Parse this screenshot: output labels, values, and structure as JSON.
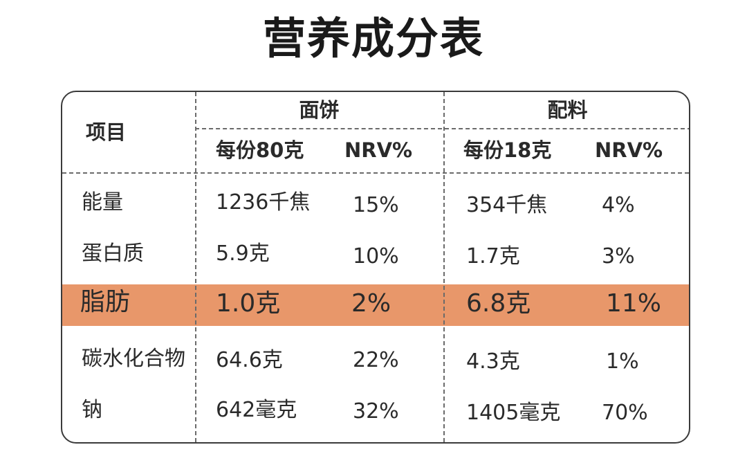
{
  "title": "营养成分表",
  "table": {
    "item_header": "项目",
    "groups": [
      {
        "name": "面饼",
        "serving_header": "每份80克",
        "nrv_header": "NRV%"
      },
      {
        "name": "配料",
        "serving_header": "每份18克",
        "nrv_header": "NRV%"
      }
    ],
    "rows": [
      {
        "item": "能量",
        "noodle_amount": "1236千焦",
        "noodle_nrv": "15%",
        "season_amount": "354千焦",
        "season_nrv": "4%",
        "highlighted": false
      },
      {
        "item": "蛋白质",
        "noodle_amount": "5.9克",
        "noodle_nrv": "10%",
        "season_amount": "1.7克",
        "season_nrv": "3%",
        "highlighted": false
      },
      {
        "item": "脂肪",
        "noodle_amount": "1.0克",
        "noodle_nrv": "2%",
        "season_amount": "6.8克",
        "season_nrv": "11%",
        "highlighted": true
      },
      {
        "item": "碳水化合物",
        "noodle_amount": "64.6克",
        "noodle_nrv": "22%",
        "season_amount": "4.3克",
        "season_nrv": "1%",
        "highlighted": false
      },
      {
        "item": "钠",
        "noodle_amount": "642毫克",
        "noodle_nrv": "32%",
        "season_amount": "1405毫克",
        "season_nrv": "70%",
        "highlighted": false
      }
    ]
  },
  "colors": {
    "highlight": "#e8976a",
    "border": "#3a3a3a",
    "text": "#2a2a2a"
  }
}
